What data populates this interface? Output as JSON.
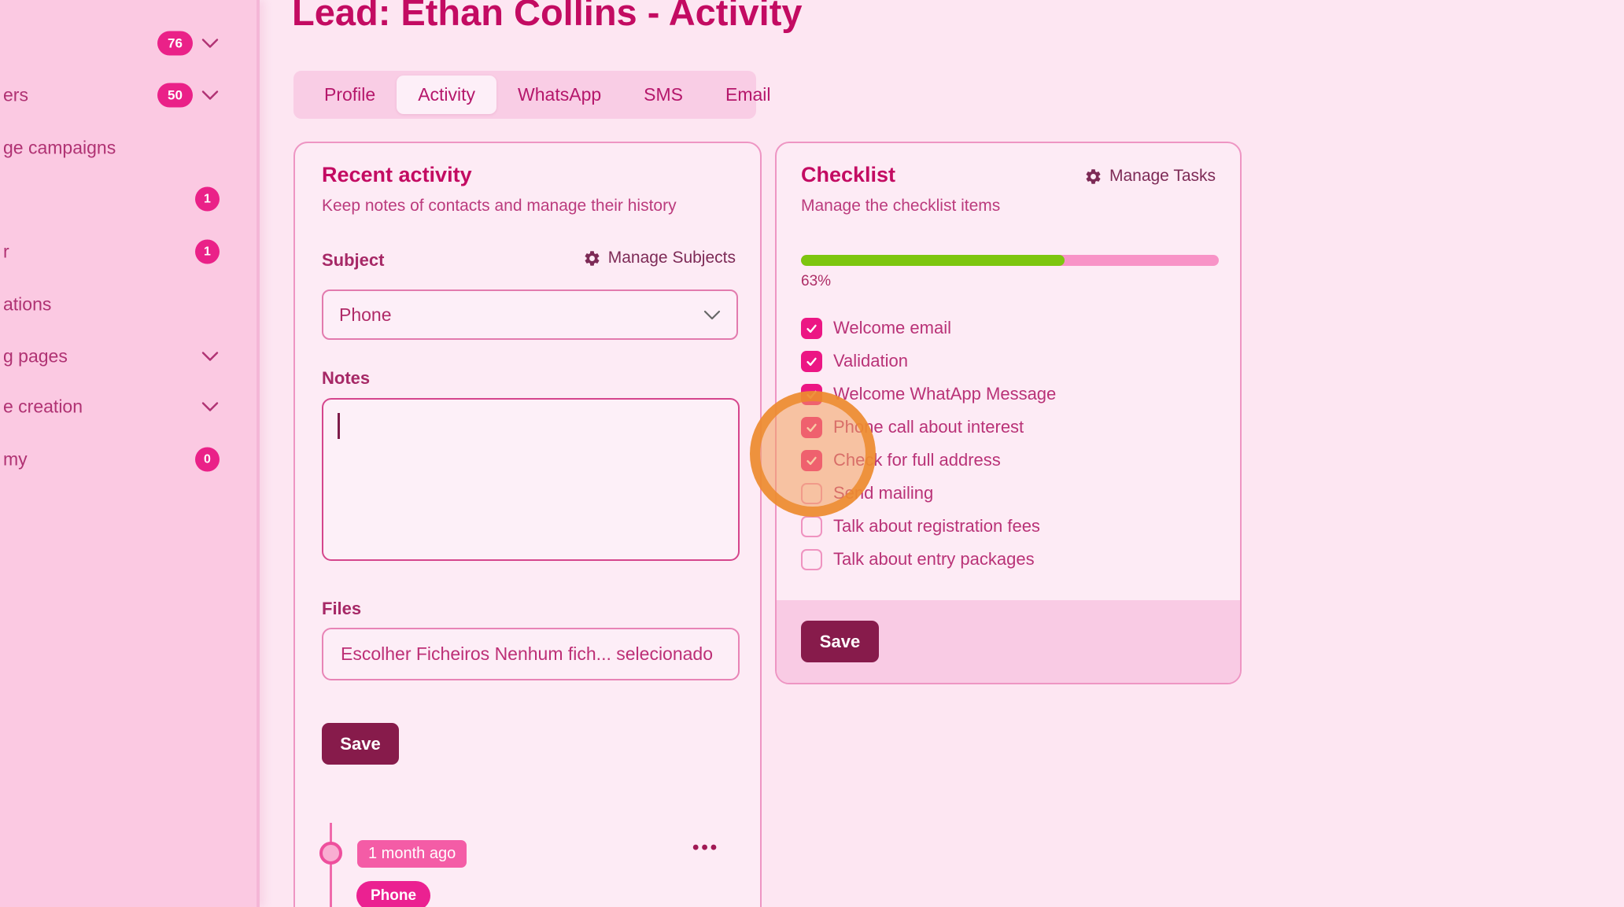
{
  "page": {
    "title": "Lead: Ethan Collins - Activity"
  },
  "sidebar": {
    "items": [
      {
        "label": "",
        "badge": "76",
        "badge_type": "pill",
        "chevron": true
      },
      {
        "label": "ers",
        "badge": "50",
        "badge_type": "pill",
        "chevron": true
      },
      {
        "label": "ge campaigns",
        "badge": "",
        "badge_type": "none",
        "chevron": false
      },
      {
        "label": "",
        "badge": "1",
        "badge_type": "circle",
        "chevron": false
      },
      {
        "label": "r",
        "badge": "1",
        "badge_type": "circle",
        "chevron": false
      },
      {
        "label": "ations",
        "badge": "",
        "badge_type": "none",
        "chevron": false
      },
      {
        "label": "g pages",
        "badge": "",
        "badge_type": "none",
        "chevron": true
      },
      {
        "label": "e creation",
        "badge": "",
        "badge_type": "none",
        "chevron": true
      },
      {
        "label": "my",
        "badge": "0",
        "badge_type": "circle",
        "chevron": false
      }
    ]
  },
  "tabs": [
    {
      "label": "Profile",
      "active": false
    },
    {
      "label": "Activity",
      "active": true
    },
    {
      "label": "WhatsApp",
      "active": false
    },
    {
      "label": "SMS",
      "active": false
    },
    {
      "label": "Email",
      "active": false
    }
  ],
  "recent_activity": {
    "title": "Recent activity",
    "subtitle": "Keep notes of contacts and manage their history",
    "subject_label": "Subject",
    "manage_subjects_label": "Manage Subjects",
    "subject_value": "Phone",
    "notes_label": "Notes",
    "notes_value": "",
    "files_label": "Files",
    "file_input_text": "Escolher Ficheiros Nenhum fich... selecionado",
    "save_label": "Save",
    "timeline_entry": {
      "time_badge": "1 month ago",
      "type_badge": "Phone",
      "menu_dots": "•••"
    }
  },
  "checklist": {
    "title": "Checklist",
    "manage_tasks_label": "Manage Tasks",
    "subtitle": "Manage the checklist items",
    "progress_value": 63,
    "progress_label": "63%",
    "items": [
      {
        "label": "Welcome email",
        "checked": true
      },
      {
        "label": "Validation",
        "checked": true
      },
      {
        "label": "Welcome WhatApp Message",
        "checked": true
      },
      {
        "label": "Phone call about interest",
        "checked": true
      },
      {
        "label": "Check for full address",
        "checked": true
      },
      {
        "label": "Send mailing",
        "checked": false
      },
      {
        "label": "Talk about registration fees",
        "checked": false
      },
      {
        "label": "Talk about entry packages",
        "checked": false
      }
    ],
    "save_label": "Save"
  },
  "colors": {
    "accent_magenta": "#ea2188",
    "title_crimson": "#c30b62",
    "save_maroon": "#871b4b",
    "progress_green": "#7dc60f",
    "progress_track_pink": "#f893c7",
    "highlight_orange": "#ec8a2c",
    "sidebar_bg": "#fbc9e2",
    "main_bg": "#fde6f2",
    "card_bg": "#fdebf5"
  }
}
